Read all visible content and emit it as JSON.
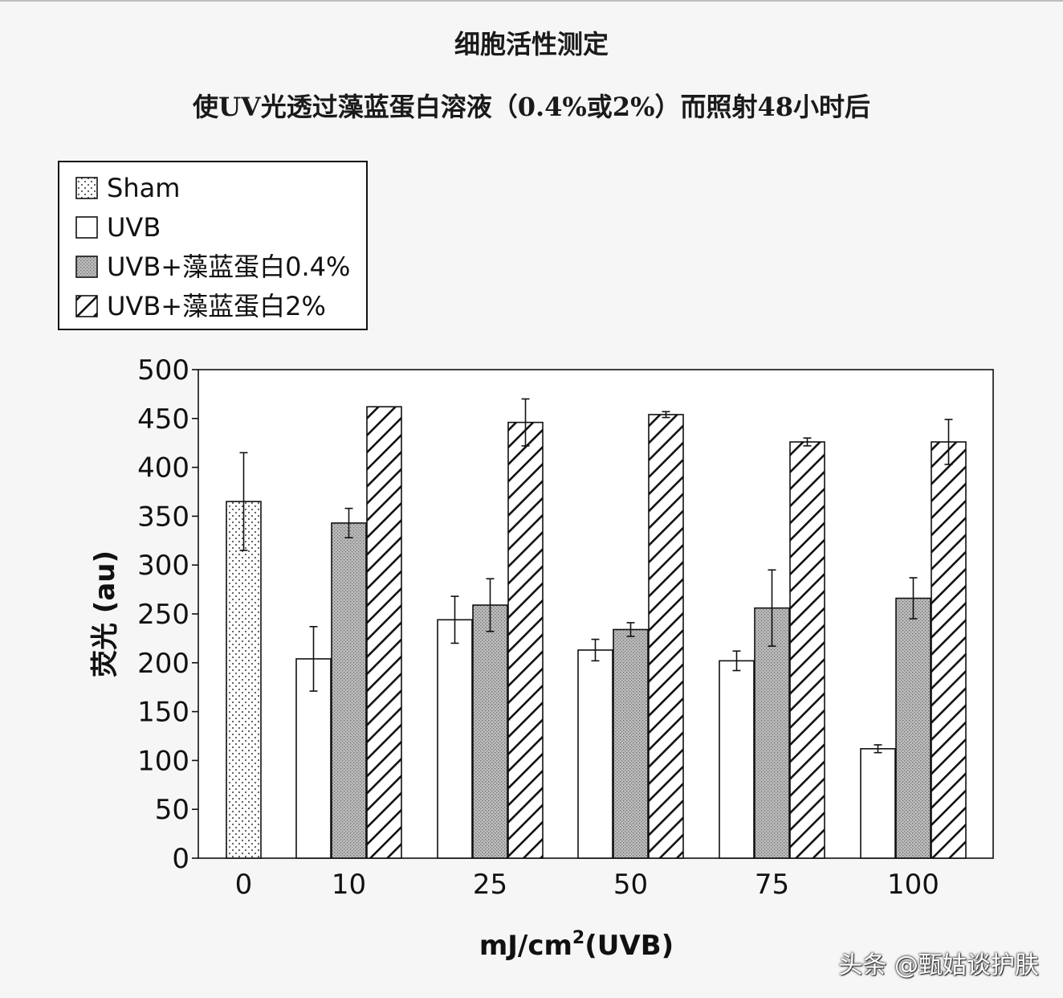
{
  "header": {
    "title": "细胞活性测定",
    "subtitle": "使UV光透过藻蓝蛋白溶液（0.4%或2%）而照射48小时后"
  },
  "watermark": "头条 @甄姑谈护肤",
  "chart_data": {
    "type": "bar",
    "title": "细胞活性测定",
    "subtitle": "使UV光透过藻蓝蛋白溶液（0.4%或2%）而照射48小时后",
    "xlabel_base": "mJ/cm",
    "xlabel_sup": "2",
    "xlabel_suffix": "(UVB)",
    "ylabel": "荧光 (au)",
    "ylim": [
      0,
      500
    ],
    "yticks": [
      0,
      50,
      100,
      150,
      200,
      250,
      300,
      350,
      400,
      450,
      500
    ],
    "categories": [
      "0",
      "10",
      "25",
      "50",
      "75",
      "100"
    ],
    "legend_position": "top-left",
    "grid": false,
    "series": [
      {
        "name": "Sham",
        "pattern": "dots",
        "values": [
          365,
          null,
          null,
          null,
          null,
          null
        ],
        "errors": [
          50,
          null,
          null,
          null,
          null,
          null
        ]
      },
      {
        "name": "UVB",
        "pattern": "empty",
        "values": [
          null,
          204,
          244,
          213,
          202,
          112
        ],
        "errors": [
          null,
          33,
          24,
          11,
          10,
          4
        ]
      },
      {
        "name": "UVB+藻蓝蛋白0.4%",
        "pattern": "shaded",
        "values": [
          null,
          343,
          259,
          234,
          256,
          266
        ],
        "errors": [
          null,
          15,
          27,
          7,
          39,
          21
        ]
      },
      {
        "name": "UVB+藻蓝蛋白2%",
        "pattern": "hatch",
        "values": [
          null,
          462,
          446,
          454,
          426,
          426
        ],
        "errors": [
          null,
          0,
          24,
          3,
          4,
          23
        ]
      }
    ]
  }
}
